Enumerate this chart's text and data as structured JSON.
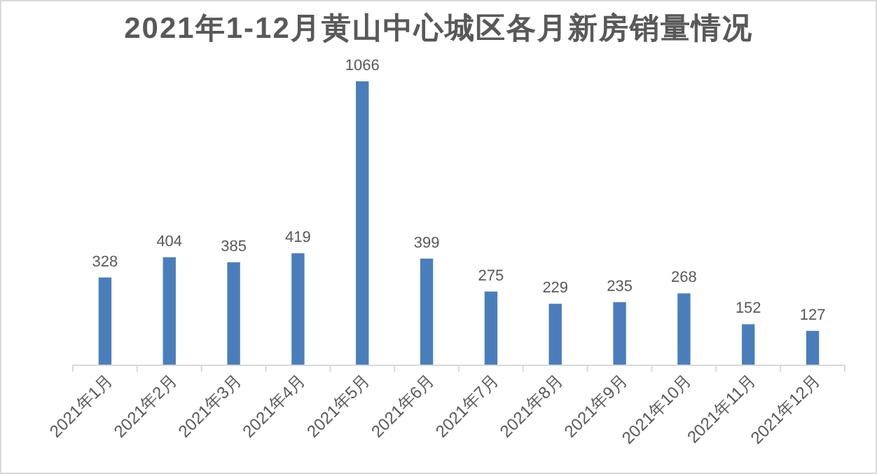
{
  "chart_data": {
    "type": "bar",
    "title": "2021年1-12月黄山中心城区各月新房销量情况",
    "categories": [
      "2021年1月",
      "2021年2月",
      "2021年3月",
      "2021年4月",
      "2021年5月",
      "2021年6月",
      "2021年7月",
      "2021年8月",
      "2021年9月",
      "2021年10月",
      "2021年11月",
      "2021年12月"
    ],
    "values": [
      328,
      404,
      385,
      419,
      1066,
      399,
      275,
      229,
      235,
      268,
      152,
      127
    ],
    "color": "#4a7ebb",
    "data_labels": true
  }
}
